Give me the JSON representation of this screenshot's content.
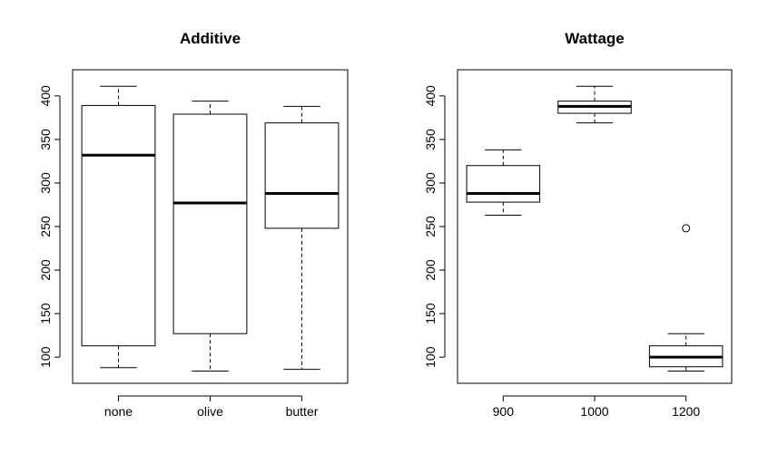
{
  "chart_data": [
    {
      "type": "boxplot",
      "title": "Additive",
      "xlabel": "",
      "ylabel": "",
      "ylim": [
        70,
        430
      ],
      "yticks": [
        100,
        150,
        200,
        250,
        300,
        350,
        400
      ],
      "categories": [
        "none",
        "olive",
        "butter"
      ],
      "boxes": [
        {
          "min": 88,
          "q1": 113,
          "median": 332,
          "q3": 389,
          "max": 411,
          "outliers": []
        },
        {
          "min": 84,
          "q1": 127,
          "median": 277,
          "q3": 379,
          "max": 394,
          "outliers": []
        },
        {
          "min": 86,
          "q1": 248,
          "median": 288,
          "q3": 369,
          "max": 388,
          "outliers": []
        }
      ]
    },
    {
      "type": "boxplot",
      "title": "Wattage",
      "xlabel": "",
      "ylabel": "",
      "ylim": [
        70,
        430
      ],
      "yticks": [
        100,
        150,
        200,
        250,
        300,
        350,
        400
      ],
      "categories": [
        "900",
        "1000",
        "1200"
      ],
      "boxes": [
        {
          "min": 263,
          "q1": 278,
          "median": 288,
          "q3": 320,
          "max": 338,
          "outliers": []
        },
        {
          "min": 369,
          "q1": 380,
          "median": 388,
          "q3": 394,
          "max": 411,
          "outliers": []
        },
        {
          "min": 84,
          "q1": 89,
          "median": 100,
          "q3": 113,
          "max": 127,
          "outliers": [
            248
          ]
        }
      ]
    }
  ]
}
